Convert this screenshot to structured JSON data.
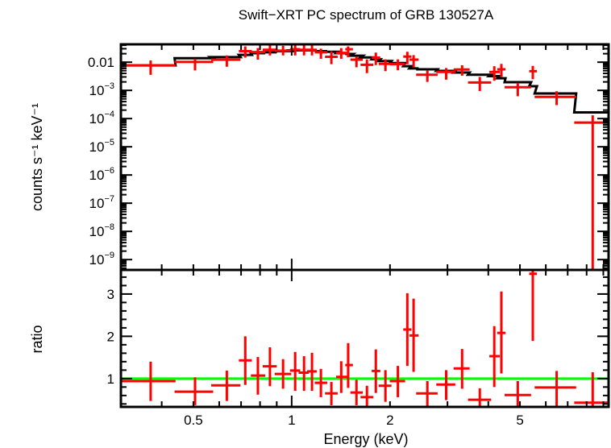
{
  "chart_data": [
    {
      "type": "scatter",
      "panel": "spectrum",
      "title": "Swift−XRT PC spectrum of GRB 130527A",
      "ylabel": "counts s⁻¹ keV⁻¹",
      "xscale": "log",
      "yscale": "log",
      "xlim": [
        0.3,
        9.34
      ],
      "ylim": [
        4.3e-10,
        0.043
      ],
      "ytick_labels": [
        {
          "v": 0.01,
          "base": "0.01",
          "exp": ""
        },
        {
          "v": 0.001,
          "base": "10",
          "exp": "−3"
        },
        {
          "v": 0.0001,
          "base": "10",
          "exp": "−4"
        },
        {
          "v": 1e-05,
          "base": "10",
          "exp": "−5"
        },
        {
          "v": 1e-06,
          "base": "10",
          "exp": "−6"
        },
        {
          "v": 1e-07,
          "base": "10",
          "exp": "−7"
        },
        {
          "v": 1e-08,
          "base": "10",
          "exp": "−8"
        },
        {
          "v": 1e-09,
          "base": "10",
          "exp": "−9"
        }
      ],
      "data_color": "#ff0000",
      "model_color": "#000000",
      "energy_lo": [
        0.297,
        0.438,
        0.567,
        0.689,
        0.75,
        0.815,
        0.887,
        0.988,
        1.05,
        1.115,
        1.177,
        1.265,
        1.368,
        1.459,
        1.513,
        1.625,
        1.758,
        1.846,
        1.997,
        2.196,
        2.295,
        2.405,
        2.772,
        3.133,
        3.467,
        4.029,
        4.262,
        4.487,
        5.336,
        5.546,
        7.33
      ],
      "energy_hi": [
        0.441,
        0.575,
        0.697,
        0.755,
        0.83,
        0.9,
        0.997,
        1.062,
        1.128,
        1.193,
        1.285,
        1.383,
        1.486,
        1.54,
        1.651,
        1.778,
        1.868,
        2.021,
        2.225,
        2.327,
        2.447,
        2.798,
        3.17,
        3.506,
        4.082,
        4.336,
        4.515,
        5.408,
        5.637,
        7.432,
        9.45
      ],
      "energy": [
        0.37,
        0.506,
        0.633,
        0.721,
        0.788,
        0.858,
        0.941,
        1.025,
        1.091,
        1.154,
        1.229,
        1.323,
        1.418,
        1.489,
        1.579,
        1.7,
        1.81,
        1.937,
        2.114,
        2.26,
        2.362,
        2.603,
        2.972,
        3.325,
        3.767,
        4.172,
        4.386,
        4.924,
        5.474,
        6.477,
        8.35
      ],
      "counts": [
        0.00769,
        0.0102,
        0.0122,
        0.0245,
        0.0229,
        0.0275,
        0.0257,
        0.0288,
        0.0275,
        0.0275,
        0.0224,
        0.0155,
        0.0214,
        0.0288,
        0.0123,
        0.0081,
        0.0145,
        0.0087,
        0.0085,
        0.0158,
        0.0123,
        0.0036,
        0.0045,
        0.0055,
        0.0019,
        0.0045,
        0.0056,
        0.00129,
        0.0048,
        0.00059,
        7.2e-05
      ],
      "counts_lo": [
        0.00357,
        0.0051,
        0.0069,
        0.0145,
        0.0123,
        0.0174,
        0.0174,
        0.0174,
        0.0174,
        0.0174,
        0.0132,
        0.0085,
        0.0132,
        0.0151,
        0.0066,
        0.0041,
        0.0079,
        0.0048,
        0.0052,
        0.0085,
        0.0065,
        0.002,
        0.0024,
        0.0033,
        0.00095,
        0.0022,
        0.0029,
        0.00062,
        0.0025,
        0.0003,
        1e-10
      ],
      "counts_hi": [
        0.0115,
        0.0133,
        0.0174,
        0.0363,
        0.0316,
        0.0398,
        0.038,
        0.0427,
        0.0398,
        0.0427,
        0.0302,
        0.0245,
        0.0316,
        0.0363,
        0.0158,
        0.0126,
        0.0219,
        0.0126,
        0.0126,
        0.0234,
        0.0178,
        0.0052,
        0.0062,
        0.0078,
        0.003,
        0.0072,
        0.0087,
        0.00186,
        0.0074,
        0.00093,
        0.00013
      ],
      "model": [
        0.00769,
        0.0138,
        0.0151,
        0.0182,
        0.0209,
        0.0224,
        0.0245,
        0.0263,
        0.0263,
        0.0263,
        0.0245,
        0.0234,
        0.0209,
        0.0195,
        0.017,
        0.0148,
        0.0126,
        0.011,
        0.0093,
        0.0072,
        0.006,
        0.0056,
        0.0049,
        0.0043,
        0.0036,
        0.0032,
        0.0027,
        0.00195,
        0.00141,
        0.00078,
        0.000166
      ]
    },
    {
      "type": "scatter",
      "panel": "ratio",
      "xlabel": "Energy (keV)",
      "ylabel": "ratio",
      "xscale": "log",
      "xlim": [
        0.3,
        9.34
      ],
      "ylim": [
        0.33,
        3.57
      ],
      "xtick_labels": [
        {
          "v": 0.5,
          "t": "0.5"
        },
        {
          "v": 1,
          "t": "1"
        },
        {
          "v": 2,
          "t": "2"
        },
        {
          "v": 5,
          "t": "5"
        }
      ],
      "ytick_labels": [
        {
          "v": 1,
          "t": "1"
        },
        {
          "v": 2,
          "t": "2"
        },
        {
          "v": 3,
          "t": "3"
        }
      ],
      "reference_line": 1,
      "reference_color": "#00ff00",
      "ratio": [
        0.94,
        0.69,
        0.84,
        1.43,
        1.07,
        1.29,
        1.11,
        1.19,
        1.14,
        1.17,
        0.9,
        0.65,
        1.04,
        1.32,
        0.67,
        0.56,
        1.18,
        0.83,
        0.94,
        2.16,
        2.02,
        0.65,
        0.86,
        1.24,
        0.5,
        1.53,
        2.08,
        0.61,
        3.48,
        0.79,
        0.43
      ],
      "ratio_lo": [
        0.47,
        0.37,
        0.47,
        0.85,
        0.62,
        0.82,
        0.76,
        0.71,
        0.71,
        0.71,
        0.56,
        0.37,
        0.66,
        0.78,
        0.37,
        0.32,
        0.66,
        0.45,
        0.56,
        1.3,
        1.16,
        0.34,
        0.49,
        0.76,
        0.32,
        0.8,
        1.12,
        0.32,
        1.89,
        0.32,
        0.0
      ],
      "ratio_hi": [
        1.4,
        1.03,
        1.19,
        2.0,
        1.51,
        1.74,
        1.46,
        1.63,
        1.53,
        1.61,
        1.23,
        0.92,
        1.41,
        1.84,
        0.97,
        0.83,
        1.69,
        1.2,
        1.3,
        3.02,
        2.89,
        0.94,
        1.2,
        1.7,
        0.77,
        2.24,
        3.06,
        0.94,
        3.8,
        1.18,
        1.15
      ]
    }
  ]
}
